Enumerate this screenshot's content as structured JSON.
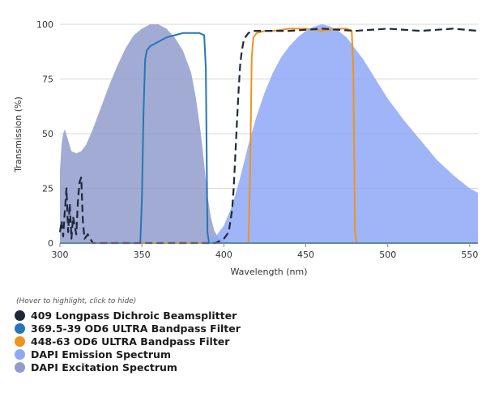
{
  "chart_data": {
    "type": "area",
    "xlabel": "Wavelength (nm)",
    "ylabel": "Transmission (%)",
    "xlim": [
      300,
      555
    ],
    "ylim": [
      0,
      100
    ],
    "x_ticks": [
      300,
      350,
      400,
      450,
      500,
      550
    ],
    "y_ticks": [
      0,
      25,
      50,
      75,
      100
    ],
    "grid": "horizontal",
    "legend_placement": "bottom-left",
    "legend_hint": "(Hover to highlight, click to hide)",
    "series": [
      {
        "name": "409 Longpass Dichroic Beamsplitter",
        "color": "#1e2a3c",
        "style": "dashed-line",
        "x": [
          300,
          301,
          302,
          303,
          304,
          305,
          306,
          307,
          308,
          309,
          310,
          311,
          312,
          313,
          314,
          315,
          317,
          320,
          330,
          350,
          380,
          395,
          400,
          403,
          405,
          406,
          407,
          408,
          409,
          410,
          411,
          412,
          413,
          415,
          418,
          425,
          440,
          460,
          480,
          500,
          520,
          540,
          555
        ],
        "y": [
          5,
          10,
          3,
          15,
          25,
          5,
          18,
          2,
          12,
          8,
          4,
          20,
          28,
          30,
          10,
          2,
          4,
          0,
          0,
          0,
          0,
          0,
          2,
          5,
          15,
          25,
          40,
          55,
          70,
          82,
          88,
          92,
          94,
          96,
          97,
          97,
          97,
          98,
          97,
          98,
          97,
          98,
          97
        ]
      },
      {
        "name": "369.5-39 OD6 ULTRA Bandpass Filter",
        "color": "#2378b5",
        "style": "line",
        "x": [
          300,
          349,
          350,
          351,
          352,
          353,
          355,
          360,
          365,
          370,
          375,
          380,
          385,
          388,
          389,
          390,
          391,
          555
        ],
        "y": [
          0,
          0,
          20,
          60,
          84,
          88,
          90,
          92,
          94,
          95,
          96,
          96,
          96,
          95,
          80,
          5,
          0,
          0
        ]
      },
      {
        "name": "448-63 OD6 ULTRA Bandpass Filter",
        "color": "#f0921e",
        "style": "line",
        "x": [
          300,
          415,
          416,
          417,
          418,
          420,
          425,
          430,
          440,
          450,
          460,
          470,
          475,
          478,
          479,
          480,
          481,
          555
        ],
        "y": [
          0,
          0,
          30,
          85,
          94,
          96,
          97,
          97,
          98,
          98,
          97,
          98,
          98,
          97,
          80,
          5,
          0,
          0
        ]
      },
      {
        "name": "DAPI Emission Spectrum",
        "color": "#8ea8f6",
        "style": "area",
        "x": [
          300,
          380,
          385,
          390,
          395,
          400,
          405,
          410,
          415,
          420,
          425,
          430,
          435,
          440,
          445,
          450,
          455,
          460,
          465,
          470,
          475,
          480,
          485,
          490,
          495,
          500,
          510,
          520,
          530,
          540,
          550,
          555
        ],
        "y": [
          0,
          0,
          0.5,
          1,
          3,
          8,
          17,
          30,
          45,
          58,
          69,
          78,
          85,
          90,
          94,
          97,
          99,
          100,
          99,
          97,
          94,
          89,
          84,
          78,
          72,
          66,
          56,
          47,
          38,
          31,
          25,
          23
        ]
      },
      {
        "name": "DAPI Excitation Spectrum",
        "color": "#929ccb",
        "style": "area",
        "x": [
          300,
          301,
          302,
          303,
          305,
          307,
          310,
          313,
          316,
          320,
          325,
          330,
          335,
          340,
          345,
          350,
          355,
          360,
          365,
          370,
          375,
          380,
          383,
          386,
          388,
          390,
          392,
          394,
          396,
          400,
          405,
          415
        ],
        "y": [
          33,
          45,
          50,
          52,
          47,
          42,
          41,
          42,
          45,
          52,
          62,
          72,
          81,
          89,
          95,
          98,
          100,
          100,
          98,
          94,
          88,
          78,
          66,
          50,
          36,
          22,
          12,
          6,
          3,
          1,
          0.3,
          0
        ]
      }
    ]
  }
}
